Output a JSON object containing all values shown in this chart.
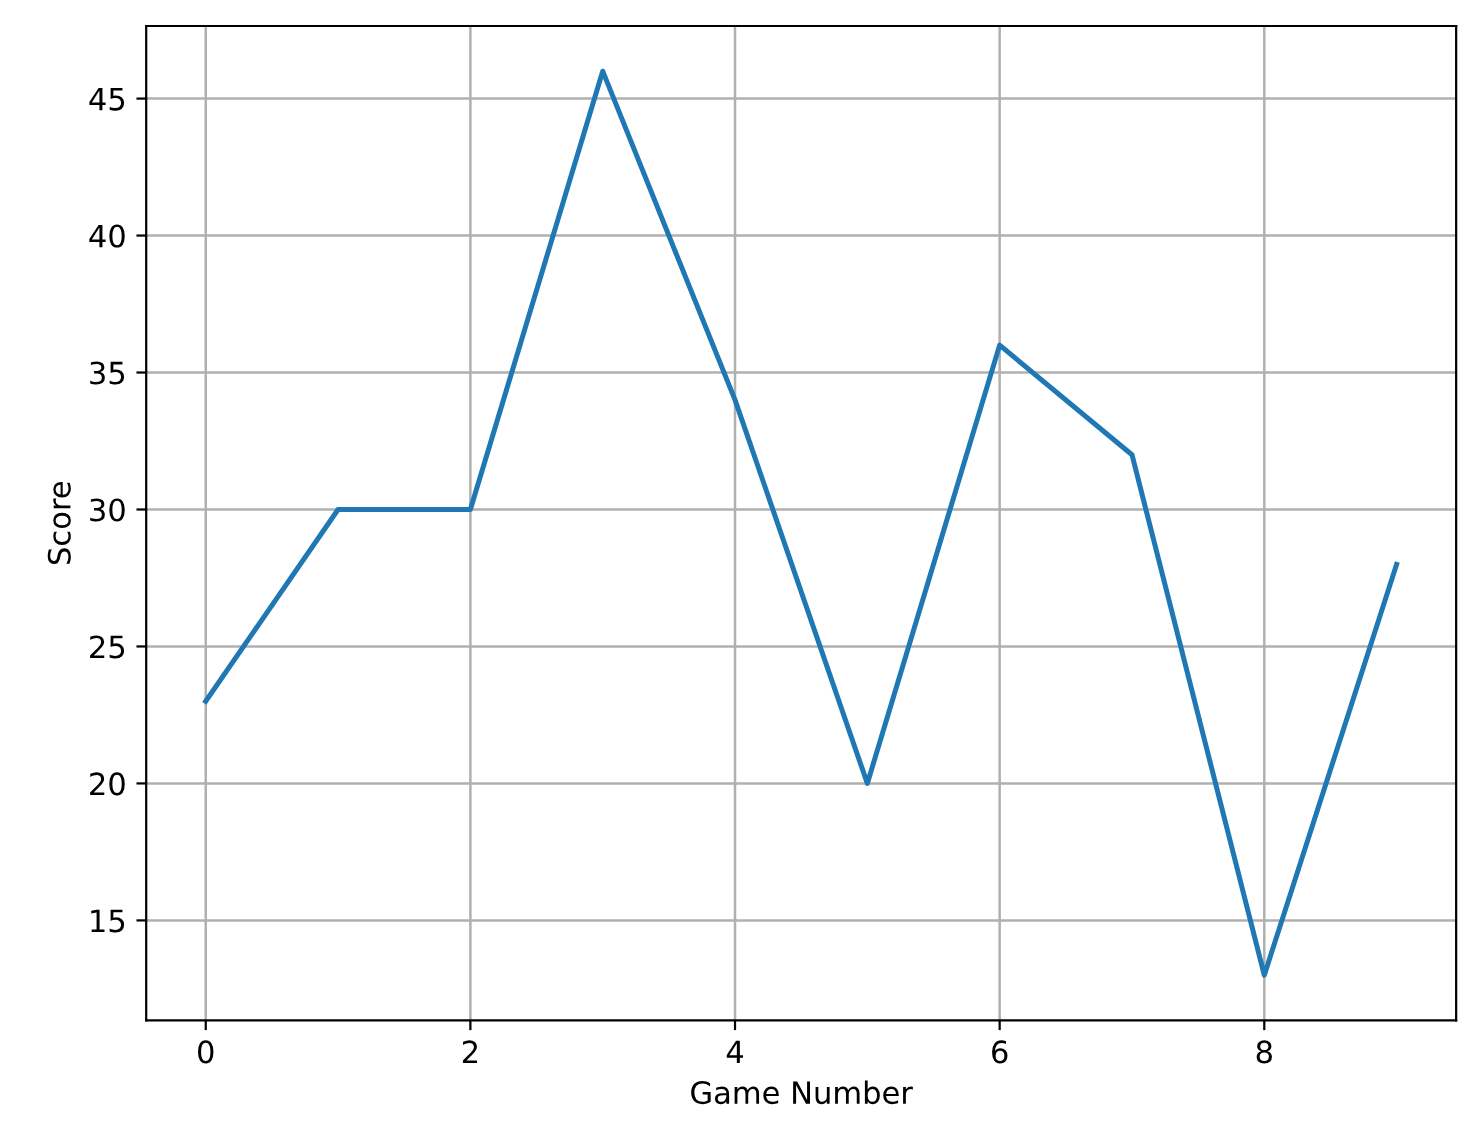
{
  "chart_data": {
    "type": "line",
    "xlabel": "Game Number",
    "ylabel": "Score",
    "x": [
      0,
      1,
      2,
      3,
      4,
      5,
      6,
      7,
      8,
      9
    ],
    "series": [
      {
        "color": "#1f77b4",
        "values": [
          23,
          30,
          30,
          46,
          34,
          20,
          36,
          32,
          13,
          28
        ]
      }
    ],
    "xlim": [
      -0.45,
      9.45
    ],
    "ylim": [
      11.35,
      47.65
    ],
    "xticks": [
      0,
      2,
      4,
      6,
      8
    ],
    "yticks": [
      15,
      20,
      25,
      30,
      35,
      40,
      45
    ],
    "grid": true,
    "line_style": "solid"
  }
}
